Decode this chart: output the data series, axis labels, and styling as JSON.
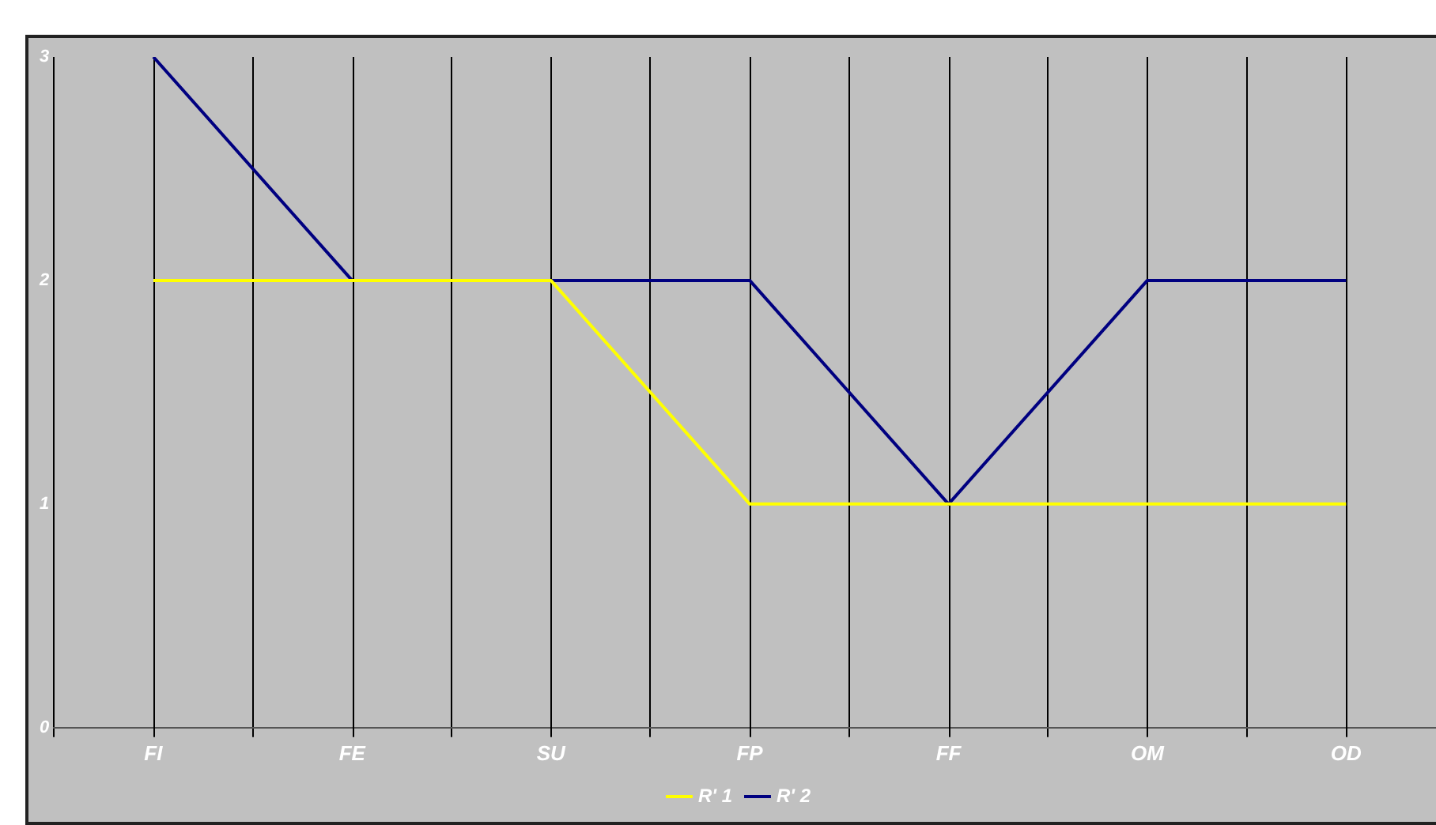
{
  "chart_data": {
    "type": "line",
    "categories": [
      "FI",
      "FE",
      "SU",
      "FP",
      "FF",
      "OM",
      "OD"
    ],
    "series": [
      {
        "name": "R' 1",
        "color": "#ffff00",
        "values": [
          2,
          2,
          2,
          1,
          1,
          1,
          1
        ]
      },
      {
        "name": "R' 2",
        "color": "#000080",
        "values": [
          3,
          2,
          2,
          2,
          1,
          2,
          2
        ]
      }
    ],
    "ylim": [
      0,
      3
    ],
    "yticks": [
      0,
      1,
      2,
      3
    ],
    "grid": "x",
    "legend": "bottom",
    "marker": "none",
    "line_style": "solid"
  }
}
